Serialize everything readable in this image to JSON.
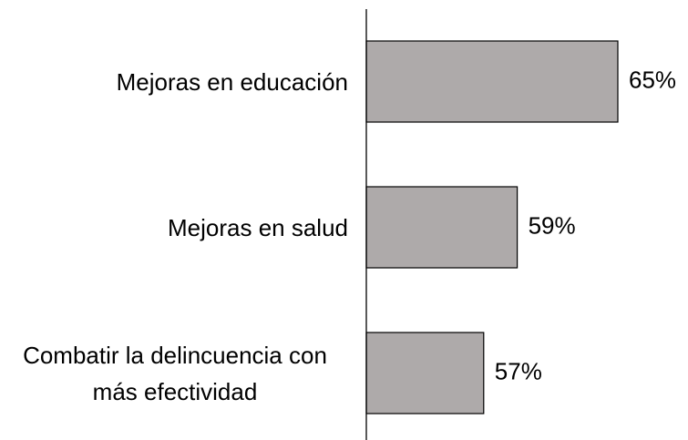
{
  "chart_data": {
    "type": "barh",
    "categories": [
      "Mejoras en educación",
      "Mejoras en salud",
      "Combatir la delincuencia con más efectividad"
    ],
    "values": [
      65,
      59,
      57
    ],
    "value_labels": [
      "65%",
      "59%",
      "57%"
    ],
    "color": "#aeaaaa",
    "xlim": [
      50,
      65
    ]
  }
}
